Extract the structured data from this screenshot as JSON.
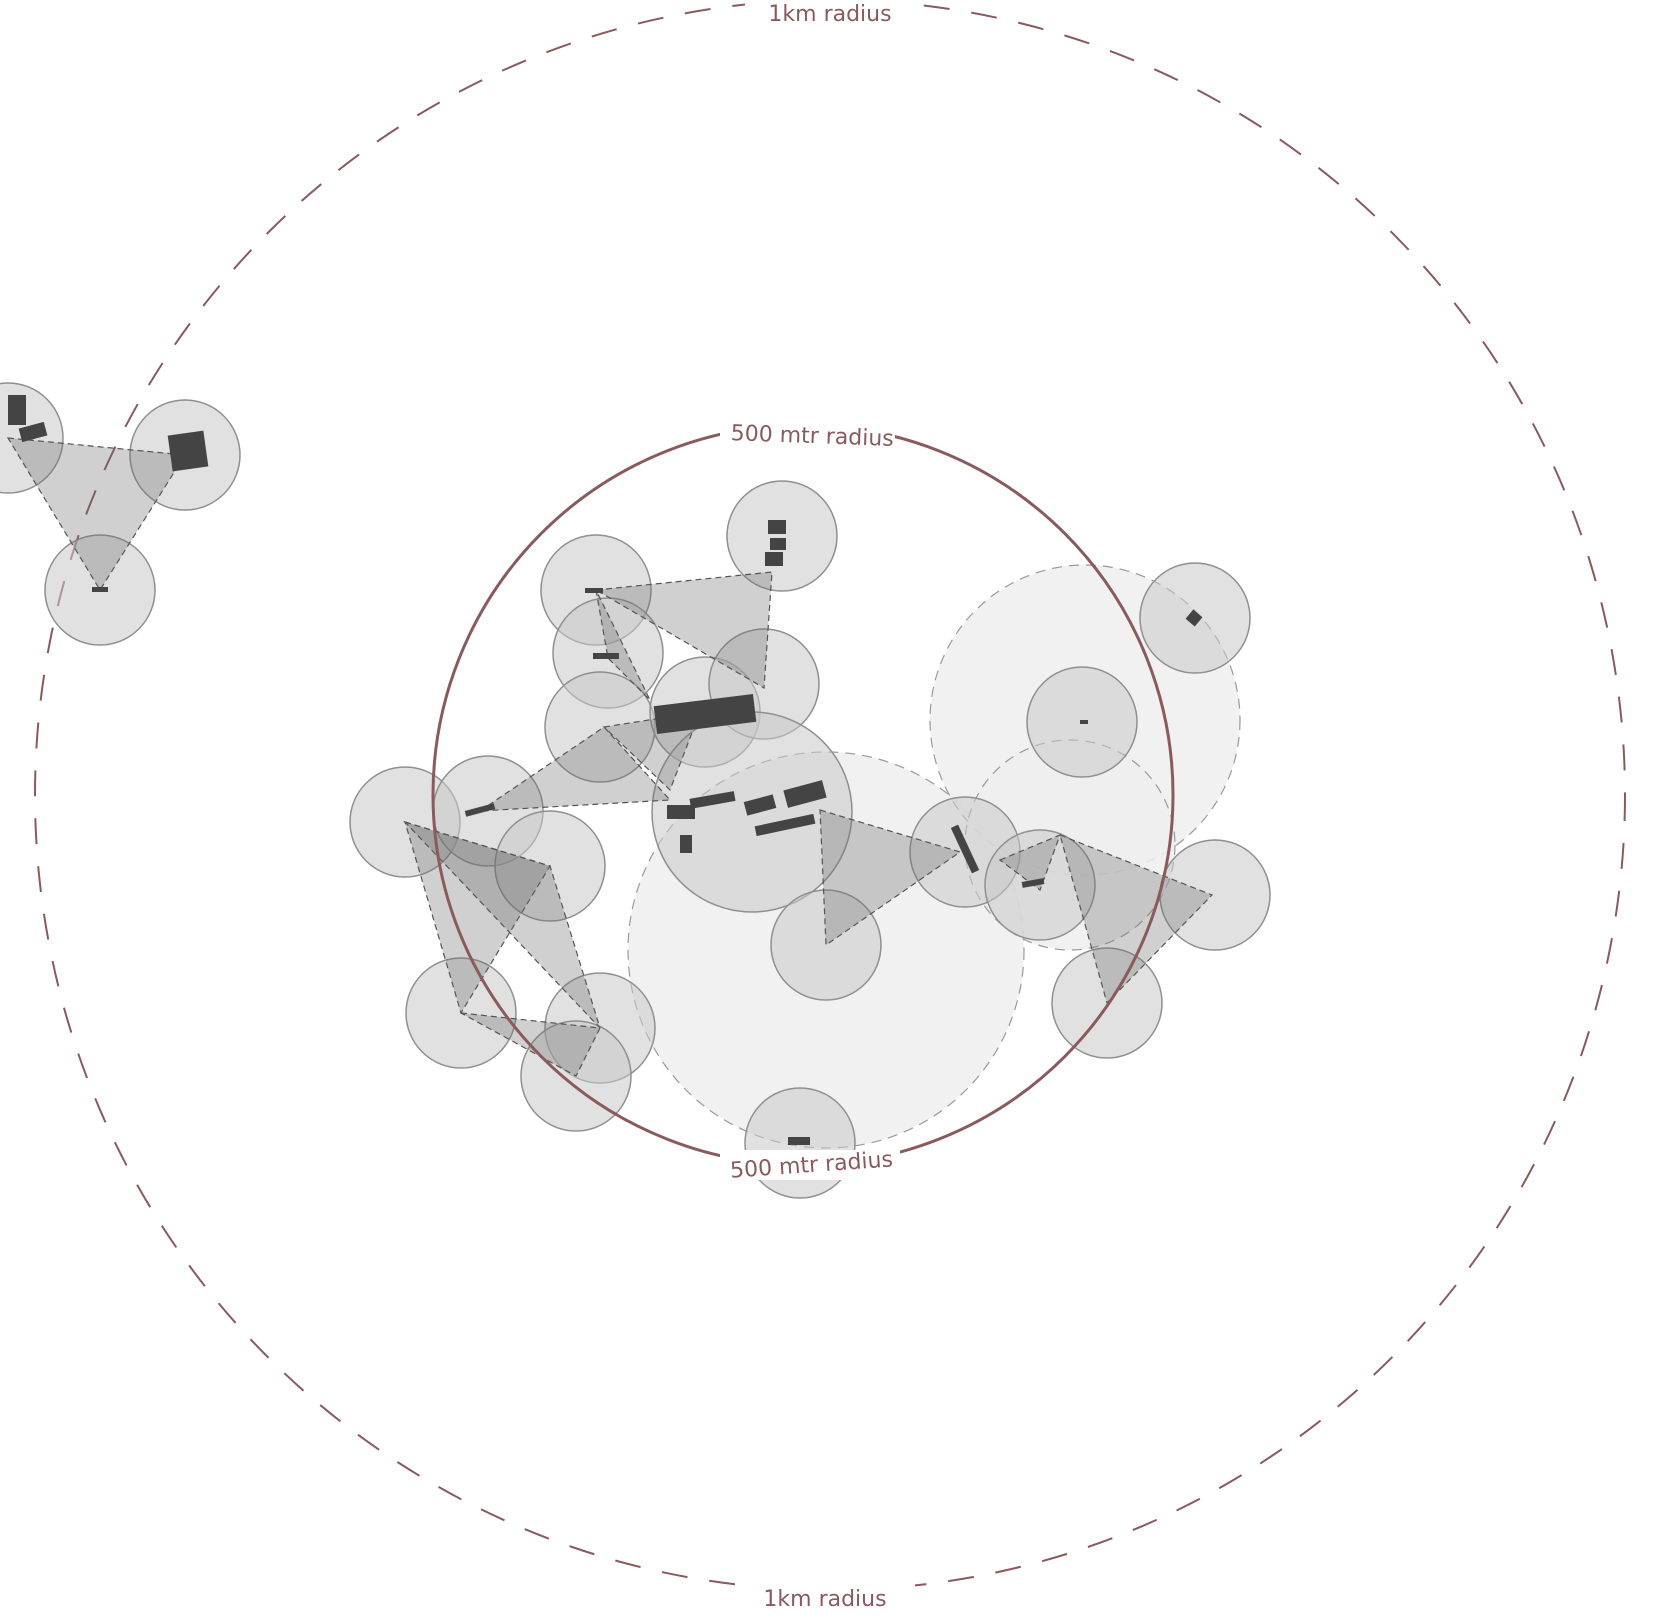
{
  "labels": {
    "outer_top": "1km radius",
    "outer_bottom": "1km radius",
    "inner_top": "500 mtr radius",
    "inner_bottom": "500 mtr radius"
  },
  "colors": {
    "background": "#ffffff",
    "ring": "#8a5a5e",
    "catchment_fill": "#c8c8c8",
    "catchment_stroke": "#8f8f8f",
    "large_zone_fill": "#efefef",
    "triangle_fill": "#6e6e6e",
    "building": "#444444"
  }
}
